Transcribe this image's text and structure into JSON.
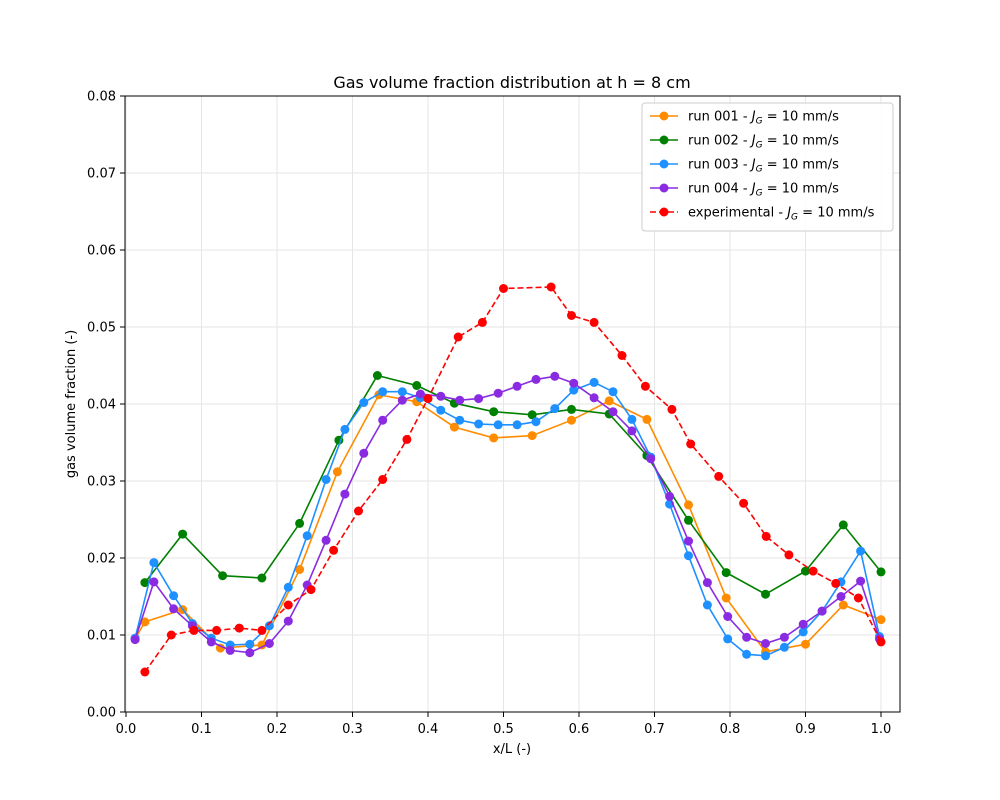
{
  "chart_data": {
    "type": "line",
    "title": "Gas volume fraction distribution at h = 8 cm",
    "xlabel": "x/L (-)",
    "ylabel": "gas volume fraction (-)",
    "xlim": [
      0.0,
      1.0
    ],
    "ylim": [
      0.0,
      0.08
    ],
    "xticks": [
      "0.0",
      "0.1",
      "0.2",
      "0.3",
      "0.4",
      "0.5",
      "0.6",
      "0.7",
      "0.8",
      "0.9",
      "1.0"
    ],
    "yticks": [
      "0.00",
      "0.01",
      "0.02",
      "0.03",
      "0.04",
      "0.05",
      "0.06",
      "0.07",
      "0.08"
    ],
    "grid": true,
    "legend_position": "top-right",
    "series": [
      {
        "name": "run 001 - J_G = 10 mm/s",
        "legend_prefix": "run 001 - ",
        "legend_symbol": "J",
        "legend_sub": "G",
        "legend_suffix": " = 10 mm/s",
        "color": "#ff8c00",
        "dashed": false,
        "points": [
          [
            0.012,
            0.0095
          ],
          [
            0.025,
            0.0117
          ],
          [
            0.075,
            0.0133
          ],
          [
            0.125,
            0.0083
          ],
          [
            0.18,
            0.0087
          ],
          [
            0.23,
            0.0185
          ],
          [
            0.28,
            0.0312
          ],
          [
            0.335,
            0.0412
          ],
          [
            0.385,
            0.0403
          ],
          [
            0.435,
            0.037
          ],
          [
            0.487,
            0.0356
          ],
          [
            0.538,
            0.0359
          ],
          [
            0.59,
            0.0379
          ],
          [
            0.64,
            0.0404
          ],
          [
            0.69,
            0.038
          ],
          [
            0.745,
            0.0269
          ],
          [
            0.795,
            0.0148
          ],
          [
            0.847,
            0.0078
          ],
          [
            0.9,
            0.0088
          ],
          [
            0.95,
            0.0139
          ],
          [
            1.0,
            0.012
          ]
        ]
      },
      {
        "name": "run 002 - J_G = 10 mm/s",
        "legend_prefix": "run 002 - ",
        "legend_symbol": "J",
        "legend_sub": "G",
        "legend_suffix": " = 10 mm/s",
        "color": "#008000",
        "dashed": false,
        "points": [
          [
            0.025,
            0.0168
          ],
          [
            0.075,
            0.0231
          ],
          [
            0.128,
            0.0177
          ],
          [
            0.18,
            0.0174
          ],
          [
            0.23,
            0.0245
          ],
          [
            0.282,
            0.0353
          ],
          [
            0.333,
            0.0437
          ],
          [
            0.385,
            0.0424
          ],
          [
            0.435,
            0.0401
          ],
          [
            0.487,
            0.039
          ],
          [
            0.538,
            0.0386
          ],
          [
            0.59,
            0.0393
          ],
          [
            0.64,
            0.0387
          ],
          [
            0.69,
            0.0333
          ],
          [
            0.745,
            0.0249
          ],
          [
            0.795,
            0.0181
          ],
          [
            0.847,
            0.0153
          ],
          [
            0.9,
            0.0183
          ],
          [
            0.95,
            0.0243
          ],
          [
            1.0,
            0.0182
          ]
        ]
      },
      {
        "name": "run 003 - J_G = 10 mm/s",
        "legend_prefix": "run 003 - ",
        "legend_symbol": "J",
        "legend_sub": "G",
        "legend_suffix": " = 10 mm/s",
        "color": "#1e90ff",
        "dashed": false,
        "points": [
          [
            0.012,
            0.0096
          ],
          [
            0.037,
            0.0194
          ],
          [
            0.063,
            0.0151
          ],
          [
            0.088,
            0.0115
          ],
          [
            0.113,
            0.0096
          ],
          [
            0.138,
            0.0087
          ],
          [
            0.164,
            0.0088
          ],
          [
            0.19,
            0.0112
          ],
          [
            0.215,
            0.0162
          ],
          [
            0.24,
            0.0229
          ],
          [
            0.265,
            0.0302
          ],
          [
            0.29,
            0.0367
          ],
          [
            0.315,
            0.0402
          ],
          [
            0.34,
            0.0416
          ],
          [
            0.366,
            0.0416
          ],
          [
            0.39,
            0.0408
          ],
          [
            0.417,
            0.0392
          ],
          [
            0.442,
            0.0379
          ],
          [
            0.467,
            0.0374
          ],
          [
            0.493,
            0.0373
          ],
          [
            0.518,
            0.0373
          ],
          [
            0.543,
            0.0377
          ],
          [
            0.568,
            0.0394
          ],
          [
            0.593,
            0.0418
          ],
          [
            0.62,
            0.0428
          ],
          [
            0.645,
            0.0416
          ],
          [
            0.67,
            0.038
          ],
          [
            0.695,
            0.0331
          ],
          [
            0.72,
            0.027
          ],
          [
            0.745,
            0.0203
          ],
          [
            0.77,
            0.0139
          ],
          [
            0.797,
            0.0095
          ],
          [
            0.822,
            0.0075
          ],
          [
            0.847,
            0.0073
          ],
          [
            0.872,
            0.0084
          ],
          [
            0.897,
            0.0104
          ],
          [
            0.922,
            0.0131
          ],
          [
            0.947,
            0.0169
          ],
          [
            0.973,
            0.0209
          ],
          [
            0.998,
            0.0098
          ]
        ]
      },
      {
        "name": "run 004 - J_G = 10 mm/s",
        "legend_prefix": "run 004 - ",
        "legend_symbol": "J",
        "legend_sub": "G",
        "legend_suffix": " = 10 mm/s",
        "color": "#8a2be2",
        "dashed": false,
        "points": [
          [
            0.012,
            0.0094
          ],
          [
            0.037,
            0.0169
          ],
          [
            0.063,
            0.0134
          ],
          [
            0.088,
            0.0112
          ],
          [
            0.113,
            0.0091
          ],
          [
            0.138,
            0.008
          ],
          [
            0.164,
            0.0077
          ],
          [
            0.19,
            0.0089
          ],
          [
            0.215,
            0.0118
          ],
          [
            0.24,
            0.0165
          ],
          [
            0.265,
            0.0223
          ],
          [
            0.29,
            0.0283
          ],
          [
            0.315,
            0.0336
          ],
          [
            0.34,
            0.0379
          ],
          [
            0.366,
            0.0405
          ],
          [
            0.39,
            0.0413
          ],
          [
            0.417,
            0.041
          ],
          [
            0.442,
            0.0405
          ],
          [
            0.467,
            0.0407
          ],
          [
            0.493,
            0.0414
          ],
          [
            0.518,
            0.0423
          ],
          [
            0.543,
            0.0432
          ],
          [
            0.568,
            0.0436
          ],
          [
            0.593,
            0.0427
          ],
          [
            0.62,
            0.0408
          ],
          [
            0.645,
            0.039
          ],
          [
            0.67,
            0.0365
          ],
          [
            0.695,
            0.0329
          ],
          [
            0.72,
            0.028
          ],
          [
            0.745,
            0.0222
          ],
          [
            0.77,
            0.0168
          ],
          [
            0.797,
            0.0124
          ],
          [
            0.822,
            0.0097
          ],
          [
            0.847,
            0.0089
          ],
          [
            0.872,
            0.0097
          ],
          [
            0.897,
            0.0114
          ],
          [
            0.922,
            0.0131
          ],
          [
            0.947,
            0.015
          ],
          [
            0.973,
            0.017
          ],
          [
            0.998,
            0.0095
          ]
        ]
      },
      {
        "name": "experimental - J_G = 10 mm/s",
        "legend_prefix": "experimental - ",
        "legend_symbol": "J",
        "legend_sub": "G",
        "legend_suffix": " = 10 mm/s",
        "color": "#ff0000",
        "dashed": true,
        "points": [
          [
            0.025,
            0.0052
          ],
          [
            0.06,
            0.01
          ],
          [
            0.09,
            0.0106
          ],
          [
            0.12,
            0.0106
          ],
          [
            0.15,
            0.0109
          ],
          [
            0.18,
            0.0106
          ],
          [
            0.215,
            0.0139
          ],
          [
            0.245,
            0.0159
          ],
          [
            0.275,
            0.021
          ],
          [
            0.308,
            0.0261
          ],
          [
            0.34,
            0.0302
          ],
          [
            0.372,
            0.0354
          ],
          [
            0.4,
            0.0407
          ],
          [
            0.44,
            0.0487
          ],
          [
            0.472,
            0.0506
          ],
          [
            0.5,
            0.055
          ],
          [
            0.563,
            0.0552
          ],
          [
            0.59,
            0.0515
          ],
          [
            0.62,
            0.0506
          ],
          [
            0.657,
            0.0463
          ],
          [
            0.688,
            0.0423
          ],
          [
            0.723,
            0.0393
          ],
          [
            0.748,
            0.0348
          ],
          [
            0.785,
            0.0306
          ],
          [
            0.818,
            0.0271
          ],
          [
            0.848,
            0.0228
          ],
          [
            0.878,
            0.0204
          ],
          [
            0.91,
            0.0183
          ],
          [
            0.94,
            0.0167
          ],
          [
            0.97,
            0.0148
          ],
          [
            1.0,
            0.0091
          ]
        ]
      }
    ]
  }
}
